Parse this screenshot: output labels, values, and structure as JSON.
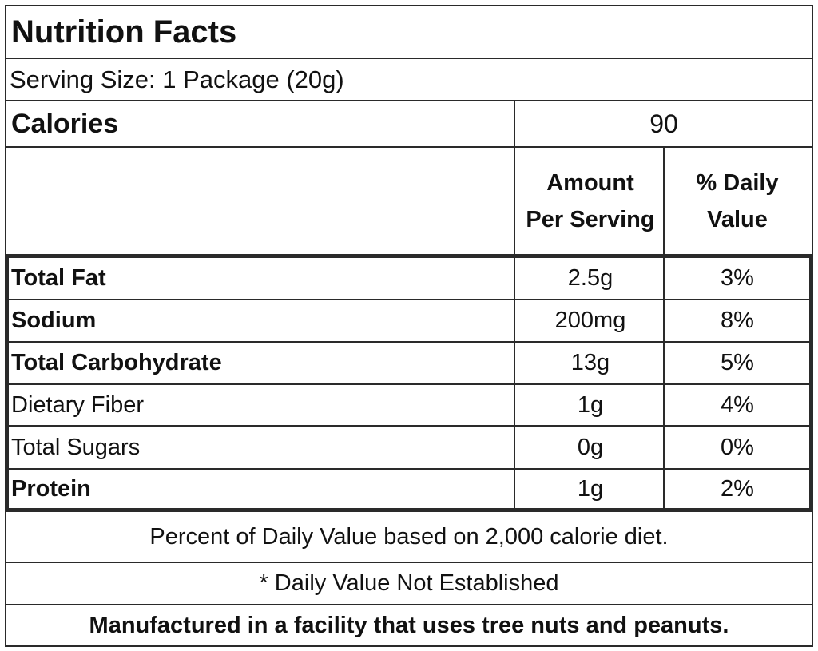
{
  "title": "Nutrition Facts",
  "serving_size": "Serving Size: 1 Package (20g)",
  "calories": {
    "label": "Calories",
    "value": "90"
  },
  "header": {
    "amount_line1": "Amount",
    "amount_line2": "Per Serving",
    "dv_line1": "% Daily",
    "dv_line2": "Value"
  },
  "nutrients": [
    {
      "name": "Total Fat",
      "amount": "2.5g",
      "dv": "3%",
      "bold": true
    },
    {
      "name": "Sodium",
      "amount": "200mg",
      "dv": "8%",
      "bold": true
    },
    {
      "name": "Total Carbohydrate",
      "amount": "13g",
      "dv": "5%",
      "bold": true
    },
    {
      "name": "Dietary Fiber",
      "amount": "1g",
      "dv": "4%",
      "bold": false
    },
    {
      "name": "Total Sugars",
      "amount": "0g",
      "dv": "0%",
      "bold": false
    },
    {
      "name": "Protein",
      "amount": "1g",
      "dv": "2%",
      "bold": true
    }
  ],
  "footnotes": {
    "daily_value_basis": "Percent of Daily Value based on 2,000 calorie diet.",
    "not_established": "* Daily Value Not Established",
    "allergen": "Manufactured in a facility that uses tree nuts and peanuts."
  }
}
